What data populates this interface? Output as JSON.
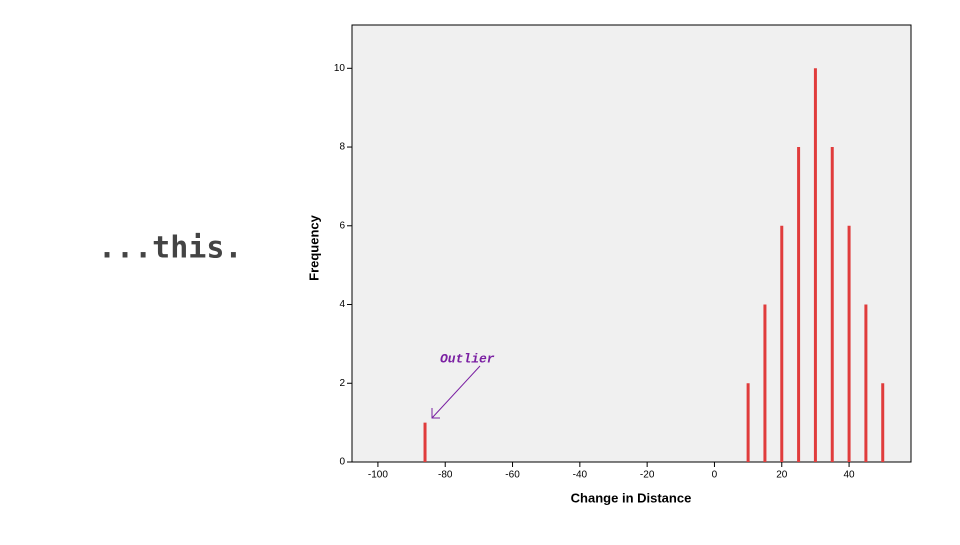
{
  "slide": {
    "caption": "...this."
  },
  "chart_data": {
    "type": "spike",
    "x": [
      -86,
      10,
      15,
      20,
      25,
      30,
      35,
      40,
      45,
      50
    ],
    "values": [
      1,
      2,
      4,
      6,
      8,
      10,
      8,
      6,
      4,
      2
    ],
    "color": "#e03c3c",
    "xlabel": "Change in Distance",
    "ylabel": "Frequency",
    "annotation": "Outlier",
    "xlim": [
      -107.7,
      58.4
    ],
    "xticks": [
      -100,
      -80,
      -60,
      -40,
      -20,
      0,
      20,
      40
    ],
    "ylim": [
      0,
      11.1
    ],
    "yticks": [
      0,
      2,
      4,
      6,
      8,
      10
    ]
  }
}
